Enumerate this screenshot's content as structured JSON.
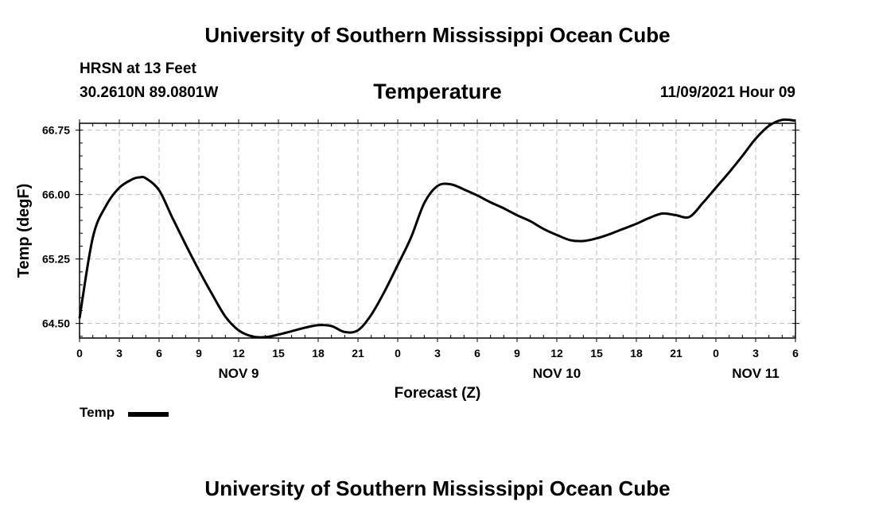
{
  "header": {
    "title": "University of Southern Mississippi Ocean Cube",
    "station": "HRSN at 13 Feet",
    "coordinates": "30.2610N  89.0801W",
    "datetime": "11/09/2021 Hour 09"
  },
  "footer": {
    "title": "University of Southern Mississippi Ocean Cube"
  },
  "legend": {
    "label": "Temp",
    "color": "#000000"
  },
  "chart_data": {
    "type": "line",
    "title": "Temperature",
    "xlabel": "Forecast (Z)",
    "ylabel": "Temp (degF)",
    "ylim": [
      64.33,
      66.83
    ],
    "y_ticks": [
      "64.50",
      "65.25",
      "66.00",
      "66.75"
    ],
    "x_ticks": [
      "0",
      "3",
      "6",
      "9",
      "12",
      "15",
      "18",
      "21",
      "0",
      "3",
      "6",
      "9",
      "12",
      "15",
      "18",
      "21",
      "0",
      "3",
      "6"
    ],
    "day_labels": [
      {
        "hour": 12,
        "label": "NOV 9"
      },
      {
        "hour": 36,
        "label": "NOV 10"
      },
      {
        "hour": 51,
        "label": "NOV 11"
      }
    ],
    "x_range_hours": [
      0,
      54
    ],
    "grid": true,
    "legend_placement": "bottom-left",
    "series": [
      {
        "name": "Temp",
        "color": "#000000",
        "x": [
          0,
          1,
          2,
          3,
          4,
          4.5,
          5,
          6,
          7,
          8,
          9,
          10,
          11,
          12,
          13,
          14,
          15,
          16,
          17,
          18,
          19,
          20,
          21,
          22,
          23,
          24,
          25,
          26,
          27,
          28,
          29,
          30,
          31,
          32,
          33,
          34,
          35,
          36,
          37,
          38,
          39,
          40,
          41,
          42,
          43,
          44,
          45,
          46,
          47,
          48,
          49,
          50,
          51,
          52,
          53,
          54
        ],
        "y": [
          64.56,
          65.5,
          65.87,
          66.08,
          66.18,
          66.2,
          66.19,
          66.05,
          65.73,
          65.42,
          65.12,
          64.84,
          64.58,
          64.42,
          64.35,
          64.34,
          64.37,
          64.41,
          64.45,
          64.48,
          64.47,
          64.4,
          64.42,
          64.6,
          64.87,
          65.18,
          65.5,
          65.9,
          66.1,
          66.12,
          66.06,
          65.99,
          65.91,
          65.84,
          65.76,
          65.69,
          65.6,
          65.53,
          65.47,
          65.46,
          65.49,
          65.54,
          65.6,
          65.66,
          65.73,
          65.78,
          65.76,
          65.74,
          65.9,
          66.08,
          66.26,
          66.45,
          66.65,
          66.8,
          66.87,
          66.86
        ]
      }
    ]
  }
}
